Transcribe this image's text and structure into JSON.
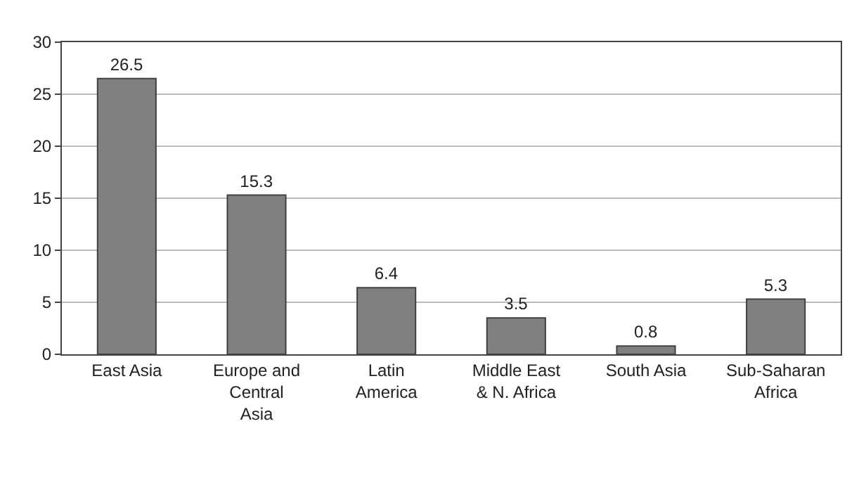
{
  "chart_data": {
    "type": "bar",
    "categories": [
      "East Asia",
      "Europe and Central Asia",
      "Latin America",
      "Middle East & N. Africa",
      "South Asia",
      "Sub-Saharan Africa"
    ],
    "values": [
      26.5,
      15.3,
      6.4,
      3.5,
      0.8,
      5.3
    ],
    "color": "#808080",
    "ylim": [
      0,
      30
    ],
    "yticks": [
      0,
      5,
      10,
      15,
      20,
      25,
      30
    ],
    "grid": "y",
    "data_labels": true
  }
}
